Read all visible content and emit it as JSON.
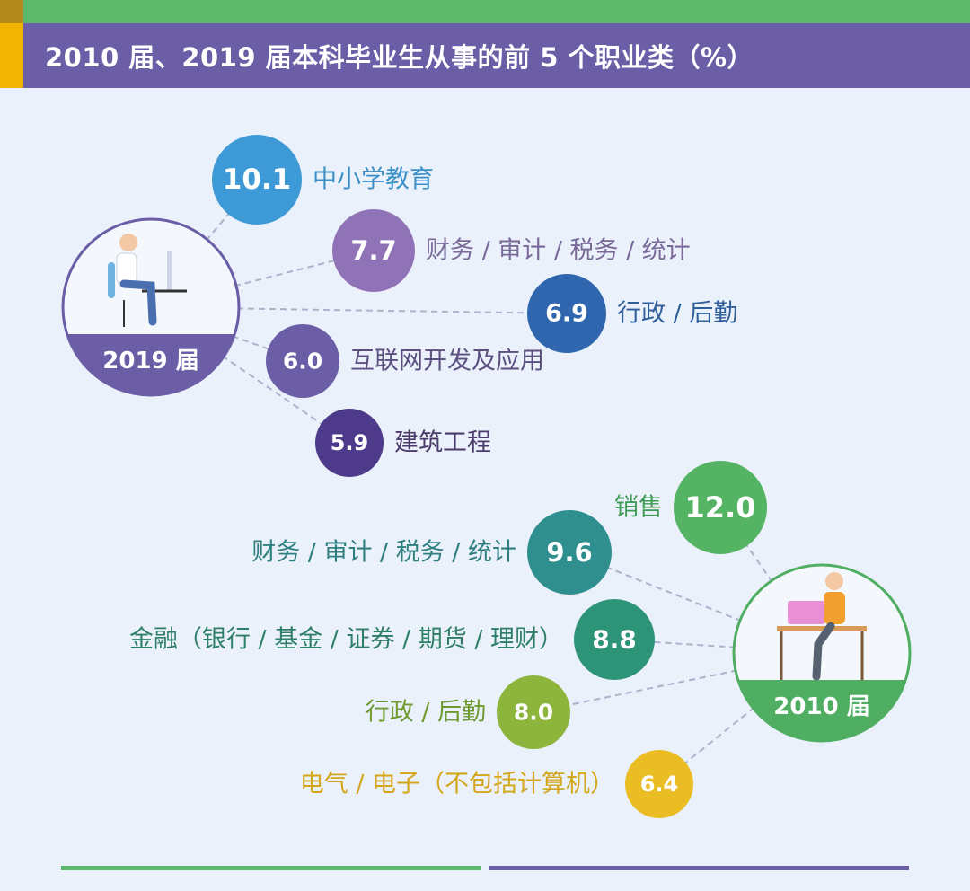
{
  "title": "2010 届、2019 届本科毕业生从事的前 5 个职业类（%）",
  "colors": {
    "title_bg": "#6b5da6",
    "top_green": "#5cb86a",
    "accent_gold": "#f2b400",
    "hub_2019": "#6b5da6",
    "hub_2010": "#4fae62"
  },
  "chart_data": [
    {
      "type": "bubble-list",
      "group": "2019 届",
      "categories": [
        "中小学教育",
        "财务 / 审计 / 税务 / 统计",
        "行政 / 后勤",
        "互联网开发及应用",
        "建筑工程"
      ],
      "values": [
        10.1,
        7.7,
        6.9,
        6.0,
        5.9
      ],
      "colors": [
        "#3d9ad6",
        "#8f73b6",
        "#2f66ad",
        "#6b5da6",
        "#4d3a8a"
      ],
      "label_colors": [
        "#3a8fc6",
        "#7a6a9a",
        "#2f5f9a",
        "#5a4f80",
        "#4a3a6a"
      ]
    },
    {
      "type": "bubble-list",
      "group": "2010 届",
      "categories": [
        "销售",
        "财务 / 审计 / 税务 / 统计",
        "金融（银行 / 基金 / 证券 / 期货 / 理财）",
        "行政 / 后勤",
        "电气 / 电子（不包括计算机）"
      ],
      "values": [
        12.0,
        9.6,
        8.8,
        8.0,
        6.4
      ],
      "colors": [
        "#54b464",
        "#2f8f8f",
        "#2e9478",
        "#8db53c",
        "#ebbd24"
      ],
      "label_colors": [
        "#3f9a55",
        "#2f7f80",
        "#2e7e68",
        "#6f9a30",
        "#d4a61a"
      ]
    }
  ]
}
